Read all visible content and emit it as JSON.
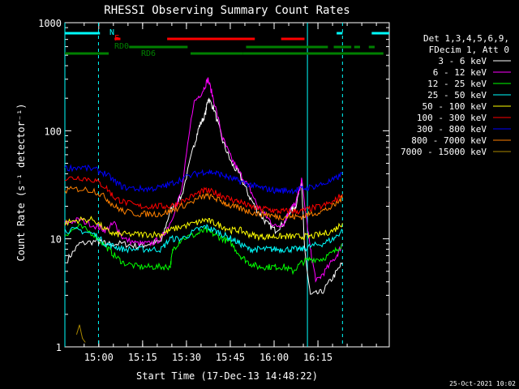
{
  "chart_data": {
    "type": "line",
    "title": "RHESSI Observing Summary Count Rates",
    "xlabel": "Start Time (17-Dec-13 14:48:22)",
    "ylabel": "Count Rate (s⁻¹ detector⁻¹)",
    "yscale": "log",
    "ylim": [
      1,
      1000
    ],
    "xlim_min": [
      0,
      110
    ],
    "x_tick_labels": [
      "15:00",
      "15:15",
      "15:30",
      "15:45",
      "16:00",
      "16:15"
    ],
    "y_tick_labels": [
      "1",
      "10",
      "100",
      "1000"
    ],
    "date_stamp": "25-Oct-2021 10:02",
    "legend_header": [
      "Det 1,3,4,5,6,9,",
      "FDecim 1, Att 0"
    ],
    "flags": [
      {
        "label": "N",
        "color": "#00ffff",
        "intervals": [
          [
            0,
            12
          ],
          [
            93,
            95
          ],
          [
            105,
            111
          ]
        ]
      },
      {
        "label": "F",
        "color": "#ff0000",
        "intervals": [
          [
            17,
            19
          ],
          [
            35,
            65
          ],
          [
            74,
            82
          ]
        ]
      },
      {
        "label": "RD0",
        "color": "#008000",
        "intervals": [
          [
            22,
            42
          ],
          [
            62,
            90
          ],
          [
            92,
            98
          ],
          [
            99,
            101
          ],
          [
            104,
            106
          ]
        ]
      },
      {
        "label": "RD6",
        "color": "#008000",
        "intervals": [
          [
            0,
            15
          ],
          [
            43,
            61
          ],
          [
            61,
            109
          ]
        ]
      }
    ],
    "vertical_lines": [
      {
        "x": 0,
        "style": "solid",
        "color": "#00ffff"
      },
      {
        "x": 11.5,
        "style": "dashed",
        "color": "#00ffff"
      },
      {
        "x": 83,
        "style": "solid",
        "color": "#00ffff"
      },
      {
        "x": 95,
        "style": "dashed",
        "color": "#00ffff"
      }
    ],
    "series": [
      {
        "name": "3 - 6 keV",
        "color": "#ffffff",
        "points": [
          [
            1,
            6.5
          ],
          [
            5,
            9
          ],
          [
            11,
            9.5
          ],
          [
            14,
            9
          ],
          [
            20,
            9
          ],
          [
            25,
            8.5
          ],
          [
            29,
            9
          ],
          [
            33,
            9.5
          ],
          [
            36,
            18
          ],
          [
            40,
            25
          ],
          [
            44,
            70
          ],
          [
            46,
            110
          ],
          [
            48,
            140
          ],
          [
            49,
            200
          ],
          [
            51,
            160
          ],
          [
            54,
            80
          ],
          [
            57,
            50
          ],
          [
            60,
            38
          ],
          [
            63,
            25
          ],
          [
            66,
            18
          ],
          [
            69,
            14
          ],
          [
            72,
            12
          ],
          [
            75,
            14
          ],
          [
            77,
            18
          ],
          [
            79,
            20
          ],
          [
            81,
            35
          ],
          [
            82,
            8
          ],
          [
            84,
            3
          ],
          [
            88,
            3.2
          ],
          [
            92,
            4.5
          ],
          [
            95,
            6
          ]
        ]
      },
      {
        "name": "6 - 12 keV",
        "color": "#ff00ff",
        "points": [
          [
            0,
            14
          ],
          [
            5,
            15
          ],
          [
            11,
            13
          ],
          [
            14,
            12
          ],
          [
            17,
            14
          ],
          [
            20,
            10
          ],
          [
            25,
            9
          ],
          [
            29,
            9
          ],
          [
            33,
            10
          ],
          [
            36,
            14
          ],
          [
            40,
            28
          ],
          [
            44,
            180
          ],
          [
            47,
            230
          ],
          [
            49,
            300
          ],
          [
            51,
            190
          ],
          [
            54,
            85
          ],
          [
            57,
            55
          ],
          [
            60,
            40
          ],
          [
            63,
            30
          ],
          [
            66,
            20
          ],
          [
            69,
            16
          ],
          [
            72,
            13
          ],
          [
            75,
            14
          ],
          [
            77,
            19
          ],
          [
            79,
            21
          ],
          [
            81,
            35
          ],
          [
            84,
            8
          ],
          [
            86,
            4
          ],
          [
            89,
            5
          ],
          [
            93,
            7
          ],
          [
            95,
            9
          ]
        ]
      },
      {
        "name": "12 - 25 keV",
        "color": "#00ff00",
        "points": [
          [
            0,
            11
          ],
          [
            5,
            13
          ],
          [
            10,
            11
          ],
          [
            14,
            8.5
          ],
          [
            17,
            7
          ],
          [
            20,
            6
          ],
          [
            25,
            5.5
          ],
          [
            29,
            5.5
          ],
          [
            33,
            5.5
          ],
          [
            36,
            5.5
          ],
          [
            37,
            8
          ],
          [
            40,
            10
          ],
          [
            45,
            11
          ],
          [
            48,
            12
          ],
          [
            51,
            11
          ],
          [
            54,
            10
          ],
          [
            57,
            9
          ],
          [
            60,
            7
          ],
          [
            63,
            6
          ],
          [
            66,
            5.5
          ],
          [
            69,
            5.5
          ],
          [
            72,
            5.5
          ],
          [
            75,
            5.5
          ],
          [
            78,
            5
          ],
          [
            81,
            6
          ],
          [
            84,
            6.5
          ],
          [
            88,
            6.5
          ],
          [
            92,
            7.5
          ],
          [
            95,
            9
          ]
        ]
      },
      {
        "name": "25 - 50 keV",
        "color": "#00ffff",
        "points": [
          [
            0,
            12
          ],
          [
            5,
            12
          ],
          [
            10,
            11
          ],
          [
            14,
            9
          ],
          [
            17,
            8.5
          ],
          [
            20,
            8
          ],
          [
            25,
            8
          ],
          [
            29,
            8
          ],
          [
            33,
            8
          ],
          [
            36,
            10
          ],
          [
            40,
            10
          ],
          [
            45,
            12
          ],
          [
            48,
            13
          ],
          [
            51,
            12
          ],
          [
            54,
            11
          ],
          [
            57,
            10
          ],
          [
            60,
            9
          ],
          [
            63,
            8
          ],
          [
            66,
            8
          ],
          [
            69,
            8
          ],
          [
            72,
            8
          ],
          [
            75,
            8
          ],
          [
            78,
            8
          ],
          [
            81,
            8
          ],
          [
            84,
            8.5
          ],
          [
            88,
            9
          ],
          [
            92,
            10
          ],
          [
            95,
            12
          ]
        ]
      },
      {
        "name": "50 - 100 keV",
        "color": "#ffff00",
        "points": [
          [
            0,
            14
          ],
          [
            5,
            15
          ],
          [
            10,
            15
          ],
          [
            14,
            12
          ],
          [
            17,
            11
          ],
          [
            20,
            11
          ],
          [
            25,
            11
          ],
          [
            29,
            11
          ],
          [
            33,
            11
          ],
          [
            36,
            12
          ],
          [
            40,
            13
          ],
          [
            45,
            14
          ],
          [
            48,
            15
          ],
          [
            51,
            14
          ],
          [
            54,
            13
          ],
          [
            57,
            12
          ],
          [
            60,
            12
          ],
          [
            63,
            11
          ],
          [
            66,
            10.5
          ],
          [
            69,
            10.5
          ],
          [
            72,
            10.5
          ],
          [
            75,
            10.5
          ],
          [
            78,
            10.5
          ],
          [
            81,
            10.5
          ],
          [
            84,
            10.5
          ],
          [
            88,
            11
          ],
          [
            92,
            12
          ],
          [
            95,
            14
          ]
        ]
      },
      {
        "name": "100 - 300 keV",
        "color": "#ff0000",
        "points": [
          [
            0,
            36
          ],
          [
            5,
            37
          ],
          [
            10,
            35
          ],
          [
            14,
            30
          ],
          [
            17,
            24
          ],
          [
            20,
            22
          ],
          [
            25,
            20
          ],
          [
            29,
            20
          ],
          [
            33,
            20
          ],
          [
            36,
            20
          ],
          [
            40,
            22
          ],
          [
            45,
            26
          ],
          [
            48,
            28
          ],
          [
            51,
            27
          ],
          [
            54,
            25
          ],
          [
            57,
            23
          ],
          [
            60,
            22
          ],
          [
            63,
            20
          ],
          [
            66,
            19
          ],
          [
            69,
            19
          ],
          [
            72,
            18
          ],
          [
            75,
            18
          ],
          [
            78,
            18
          ],
          [
            81,
            18
          ],
          [
            84,
            19
          ],
          [
            88,
            20
          ],
          [
            92,
            22
          ],
          [
            95,
            26
          ]
        ]
      },
      {
        "name": "300 - 800 keV",
        "color": "#0000ff",
        "points": [
          [
            0,
            45
          ],
          [
            5,
            46
          ],
          [
            10,
            44
          ],
          [
            14,
            40
          ],
          [
            17,
            34
          ],
          [
            20,
            30
          ],
          [
            25,
            29
          ],
          [
            29,
            29
          ],
          [
            33,
            30
          ],
          [
            36,
            32
          ],
          [
            40,
            36
          ],
          [
            45,
            40
          ],
          [
            48,
            42
          ],
          [
            51,
            41
          ],
          [
            54,
            39
          ],
          [
            57,
            36
          ],
          [
            60,
            34
          ],
          [
            63,
            32
          ],
          [
            66,
            30
          ],
          [
            69,
            29
          ],
          [
            72,
            28
          ],
          [
            75,
            28
          ],
          [
            78,
            28
          ],
          [
            81,
            29
          ],
          [
            84,
            30
          ],
          [
            88,
            32
          ],
          [
            92,
            35
          ],
          [
            95,
            40
          ]
        ]
      },
      {
        "name": "800 - 7000 keV",
        "color": "#ff8000",
        "points": [
          [
            0,
            28
          ],
          [
            5,
            29
          ],
          [
            10,
            28
          ],
          [
            14,
            24
          ],
          [
            17,
            20
          ],
          [
            20,
            18
          ],
          [
            25,
            17
          ],
          [
            29,
            17
          ],
          [
            33,
            17
          ],
          [
            36,
            18
          ],
          [
            40,
            20
          ],
          [
            45,
            23
          ],
          [
            48,
            25
          ],
          [
            51,
            24
          ],
          [
            54,
            22
          ],
          [
            57,
            20
          ],
          [
            60,
            19
          ],
          [
            63,
            18
          ],
          [
            66,
            17
          ],
          [
            69,
            17
          ],
          [
            72,
            16
          ],
          [
            75,
            16
          ],
          [
            78,
            16
          ],
          [
            81,
            16
          ],
          [
            84,
            17
          ],
          [
            88,
            18
          ],
          [
            92,
            20
          ],
          [
            95,
            24
          ]
        ]
      },
      {
        "name": "7000 - 15000 keV",
        "color": "#aa8800",
        "points": [
          [
            4,
            1.3
          ],
          [
            5,
            1.6
          ],
          [
            6,
            1.2
          ],
          [
            7,
            1.1
          ]
        ]
      }
    ]
  }
}
